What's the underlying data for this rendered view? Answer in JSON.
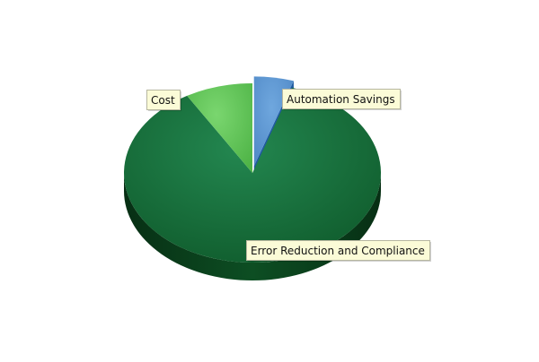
{
  "chart_data": {
    "type": "pie",
    "title": "",
    "style": "3d-exploded",
    "slices": [
      {
        "label": "Automation Savings",
        "value": 5,
        "exploded": true,
        "color_top": "#6fa7de",
        "color_top_dark": "#4f88c6",
        "color_side": "#1f5aa0",
        "color_side_dark": "#123d72"
      },
      {
        "label": "Error Reduction and Compliance",
        "value": 86.5,
        "exploded": false,
        "color_top": "#238750",
        "color_top_dark": "#0f5a2b",
        "color_side": "#0d4e23",
        "color_side_dark": "#072f14"
      },
      {
        "label": "Cost",
        "value": 8.5,
        "exploded": false,
        "color_top": "#7ad66f",
        "color_top_dark": "#4fb447",
        "color_side": "#3f8d39",
        "color_side_dark": "#2a6a27"
      }
    ]
  }
}
